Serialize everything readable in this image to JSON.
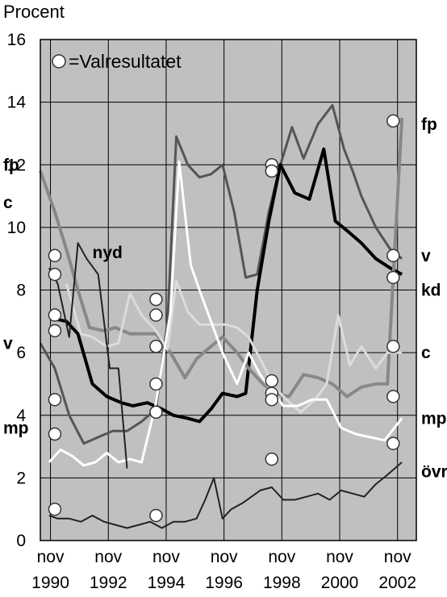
{
  "chart_data": {
    "type": "line",
    "ylabel": "Procent",
    "ylim": [
      0,
      16
    ],
    "yticks": [
      0,
      2,
      4,
      6,
      8,
      10,
      12,
      14,
      16
    ],
    "xlim": [
      1990.5,
      2003.5
    ],
    "xticks": [
      {
        "x": 1990.85,
        "month": "nov",
        "year": "1990"
      },
      {
        "x": 1992.85,
        "month": "nov",
        "year": "1992"
      },
      {
        "x": 1994.85,
        "month": "nov",
        "year": "1994"
      },
      {
        "x": 1996.85,
        "month": "nov",
        "year": "1996"
      },
      {
        "x": 1998.85,
        "month": "nov",
        "year": "1998"
      },
      {
        "x": 2000.85,
        "month": "nov",
        "year": "2000"
      },
      {
        "x": 2002.85,
        "month": "nov",
        "year": "2002"
      }
    ],
    "grid": true,
    "plot_background": "#c0c0c0",
    "legend": {
      "position": "top-left",
      "label": "=Valresultatet"
    },
    "series": [
      {
        "name": "fp",
        "color": "#555555",
        "width": 3,
        "x": [
          1990.5,
          1991.0,
          1991.5,
          1992.0,
          1992.5,
          1993.0,
          1993.5,
          1994.0,
          1994.5,
          1994.9,
          1995.2,
          1995.6,
          1996.0,
          1996.4,
          1996.8,
          1997.2,
          1997.6,
          1998.0,
          1998.4,
          1998.8,
          1999.2,
          1999.6,
          2000.1,
          2000.6,
          2001.0,
          2001.3,
          2001.6,
          2002.1,
          2002.6,
          2003.0
        ],
        "y": [
          6.3,
          5.5,
          4.0,
          3.1,
          3.3,
          3.5,
          3.5,
          3.8,
          4.2,
          7.0,
          12.9,
          12.0,
          11.6,
          11.7,
          12.0,
          10.5,
          8.4,
          8.5,
          10.5,
          12.0,
          13.2,
          12.2,
          13.3,
          13.9,
          12.5,
          11.8,
          11.0,
          10.0,
          9.3,
          9.0
        ]
      },
      {
        "name": "v",
        "color": "#000000",
        "width": 4,
        "x": [
          1990.9,
          1991.4,
          1991.8,
          1992.3,
          1992.8,
          1993.3,
          1993.7,
          1994.2,
          1994.7,
          1995.1,
          1995.6,
          1996.0,
          1996.4,
          1996.8,
          1997.3,
          1997.6,
          1998.0,
          1998.4,
          1998.8,
          1999.3,
          1999.8,
          2000.3,
          2000.7,
          2001.1,
          2001.6,
          2002.1,
          2002.6,
          2003.0
        ],
        "y": [
          7.1,
          7.0,
          6.6,
          5.0,
          4.6,
          4.4,
          4.3,
          4.4,
          4.2,
          4.0,
          3.9,
          3.8,
          4.2,
          4.7,
          4.6,
          4.7,
          8.0,
          10.2,
          12.0,
          11.1,
          10.9,
          12.5,
          10.2,
          9.9,
          9.5,
          9.0,
          8.7,
          8.5
        ]
      },
      {
        "name": "c",
        "color": "#888888",
        "width": 4,
        "x": [
          1990.5,
          1991.0,
          1991.4,
          1991.8,
          1992.2,
          1992.7,
          1993.1,
          1993.6,
          1994.0,
          1994.5,
          1995.0,
          1995.5,
          1995.9,
          1996.4,
          1996.8,
          1997.3,
          1997.7,
          1998.2,
          1998.6,
          1999.1,
          1999.6,
          2000.1,
          2000.6,
          2001.1,
          2001.6,
          2002.1,
          2002.5,
          2003.0
        ],
        "y": [
          11.8,
          10.5,
          9.3,
          8.0,
          6.8,
          6.7,
          6.8,
          6.6,
          6.6,
          6.6,
          6.0,
          5.2,
          5.8,
          6.2,
          6.5,
          6.0,
          5.5,
          5.0,
          4.7,
          4.6,
          5.3,
          5.2,
          5.0,
          4.6,
          4.9,
          5.0,
          5.0,
          13.5
        ]
      },
      {
        "name": "kd",
        "color": "#dcdcdc",
        "width": 3,
        "x": [
          1991.4,
          1991.9,
          1992.3,
          1992.8,
          1993.2,
          1993.6,
          1994.0,
          1994.5,
          1994.9,
          1995.2,
          1995.6,
          1996.0,
          1996.5,
          1996.9,
          1997.3,
          1997.7,
          1998.1,
          1998.6,
          1999.0,
          1999.5,
          2000.0,
          2000.4,
          2000.8,
          2001.2,
          2001.6,
          2002.1,
          2002.5,
          2003.0
        ],
        "y": [
          8.2,
          6.6,
          6.5,
          6.2,
          6.3,
          7.9,
          7.2,
          6.7,
          6.1,
          8.3,
          7.3,
          6.9,
          6.9,
          6.9,
          6.8,
          6.5,
          5.8,
          4.9,
          4.5,
          4.1,
          4.5,
          5.0,
          7.2,
          5.6,
          6.2,
          5.5,
          6.0,
          6.0
        ]
      },
      {
        "name": "mp",
        "color": "#ffffff",
        "width": 3,
        "x": [
          1990.8,
          1991.2,
          1991.6,
          1992.0,
          1992.4,
          1992.8,
          1993.2,
          1993.6,
          1994.0,
          1994.5,
          1995.0,
          1995.3,
          1995.7,
          1996.0,
          1996.4,
          1996.8,
          1997.3,
          1997.7,
          1998.1,
          1998.5,
          1998.9,
          1999.4,
          1999.9,
          2000.4,
          2000.9,
          2001.4,
          2001.9,
          2002.4,
          2003.0
        ],
        "y": [
          2.5,
          2.9,
          2.7,
          2.4,
          2.5,
          2.8,
          2.5,
          2.6,
          2.5,
          4.4,
          7.3,
          12.1,
          8.8,
          8.0,
          7.0,
          6.0,
          5.0,
          6.0,
          5.3,
          4.8,
          4.3,
          4.3,
          4.5,
          4.5,
          3.6,
          3.4,
          3.3,
          3.2,
          3.9
        ]
      },
      {
        "name": "nyd",
        "color": "#222222",
        "width": 2,
        "x": [
          1990.8,
          1991.1,
          1991.5,
          1991.8,
          1992.1,
          1992.5,
          1992.9,
          1993.2,
          1993.5
        ],
        "y": [
          8.7,
          8.2,
          6.5,
          9.5,
          9.0,
          8.5,
          5.5,
          5.5,
          2.3
        ]
      },
      {
        "name": "övr",
        "color": "#222222",
        "width": 2,
        "x": [
          1990.8,
          1991.1,
          1991.5,
          1991.9,
          1992.3,
          1992.7,
          1993.1,
          1993.5,
          1993.9,
          1994.3,
          1994.7,
          1995.1,
          1995.5,
          1995.9,
          1996.2,
          1996.5,
          1996.8,
          1997.1,
          1997.5,
          1997.8,
          1998.1,
          1998.5,
          1998.9,
          1999.3,
          1999.7,
          2000.1,
          2000.5,
          2000.9,
          2001.3,
          2001.7,
          2002.1,
          2002.5,
          2003.0
        ],
        "y": [
          0.8,
          0.7,
          0.7,
          0.6,
          0.8,
          0.6,
          0.5,
          0.4,
          0.5,
          0.6,
          0.4,
          0.6,
          0.6,
          0.7,
          1.3,
          2.0,
          0.7,
          1.0,
          1.2,
          1.4,
          1.6,
          1.7,
          1.3,
          1.3,
          1.4,
          1.5,
          1.3,
          1.6,
          1.5,
          1.4,
          1.8,
          2.1,
          2.5
        ]
      }
    ],
    "election_results": [
      {
        "x": 1991.0,
        "values": [
          9.1,
          8.5,
          7.2,
          6.7,
          4.5,
          3.4,
          1.0
        ]
      },
      {
        "x": 1994.5,
        "values": [
          7.7,
          7.2,
          6.2,
          5.0,
          4.1,
          0.8
        ]
      },
      {
        "x": 1998.5,
        "values": [
          12.0,
          11.8,
          5.1,
          4.7,
          4.5,
          2.6
        ]
      },
      {
        "x": 2002.7,
        "values": [
          13.4,
          9.1,
          8.4,
          6.2,
          4.6,
          3.1
        ]
      }
    ],
    "left_labels": [
      {
        "text": "fp",
        "y": 12.0
      },
      {
        "text": "c",
        "y": 10.8
      },
      {
        "text": "v",
        "y": 6.3
      },
      {
        "text": "mp",
        "y": 3.6
      }
    ],
    "right_labels": [
      {
        "text": "fp",
        "y": 13.3
      },
      {
        "text": "v",
        "y": 9.1
      },
      {
        "text": "kd",
        "y": 8.0
      },
      {
        "text": "c",
        "y": 6.0
      },
      {
        "text": "mp",
        "y": 3.9
      },
      {
        "text": "övr",
        "y": 2.2
      }
    ],
    "inline_labels": [
      {
        "text": "nyd",
        "x": 1992.3,
        "y": 9.2
      }
    ]
  }
}
